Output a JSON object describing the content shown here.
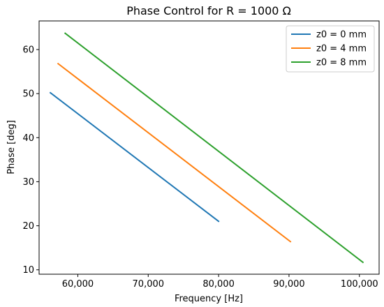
{
  "chart_data": {
    "type": "line",
    "title": "Phase Control for R = 1000 Ω",
    "xlabel": "Frequency [Hz]",
    "ylabel": "Phase [deg]",
    "xlim": [
      54500,
      102800
    ],
    "ylim": [
      9,
      66.5
    ],
    "xticks": [
      60000,
      70000,
      80000,
      90000,
      100000
    ],
    "xtick_labels": [
      "60,000",
      "70,000",
      "80,000",
      "90,000",
      "100,000"
    ],
    "yticks": [
      10,
      20,
      30,
      40,
      50,
      60
    ],
    "ytick_labels": [
      "10",
      "20",
      "30",
      "40",
      "50",
      "60"
    ],
    "grid": false,
    "legend": "top-right",
    "series": [
      {
        "name": "z0 = 0 mm",
        "color": "#1f77b4",
        "x": [
          56100,
          80000
        ],
        "y": [
          50.2,
          21.0
        ]
      },
      {
        "name": "z0 = 4 mm",
        "color": "#ff7f0e",
        "x": [
          57200,
          90200
        ],
        "y": [
          56.8,
          16.4
        ]
      },
      {
        "name": "z0 = 8 mm",
        "color": "#2ca02c",
        "x": [
          58200,
          100500
        ],
        "y": [
          63.7,
          11.7
        ]
      }
    ]
  }
}
